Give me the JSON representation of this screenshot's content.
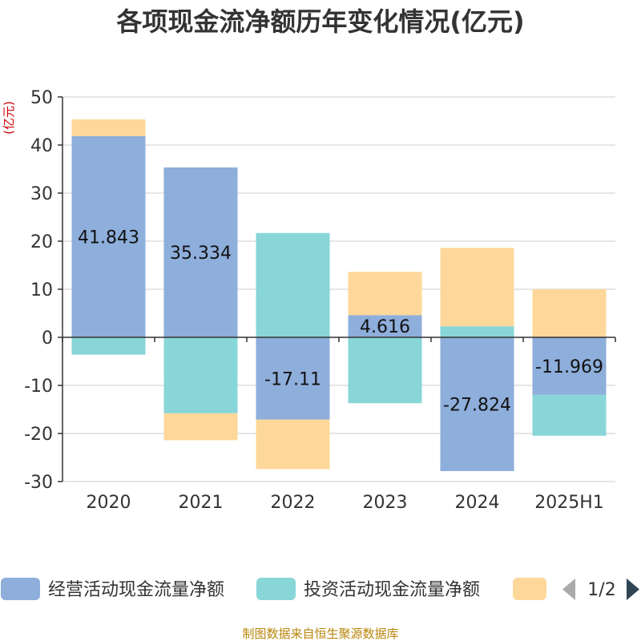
{
  "chart_data": {
    "type": "bar",
    "stacked": true,
    "title": "各项现金流净额历年变化情况(亿元)",
    "y_unit": "(亿元)",
    "categories": [
      "2020",
      "2021",
      "2022",
      "2023",
      "2024",
      "2025H1"
    ],
    "ylim": [
      -30,
      50
    ],
    "y_ticks": [
      50,
      40,
      30,
      20,
      10,
      0,
      -10,
      -20,
      -30
    ],
    "grid": true,
    "legend_position": "bottom",
    "series": [
      {
        "name": "经营活动现金流量净额",
        "color": "#8eaedb",
        "values": [
          41.843,
          35.334,
          -17.11,
          4.616,
          -27.824,
          -11.969
        ],
        "labels": [
          "41.843",
          "35.334",
          "-17.11",
          "4.616",
          "-27.824",
          "-11.969"
        ]
      },
      {
        "name": "投资活动现金流量净额",
        "color": "#88d6d8",
        "values": [
          -3.6,
          -15.8,
          21.7,
          -13.7,
          2.3,
          -8.5
        ]
      },
      {
        "name": "",
        "color": "#fdd89a",
        "values": [
          3.5,
          -5.6,
          -10.3,
          9.0,
          16.3,
          10.0
        ]
      }
    ]
  },
  "legend": {
    "page": "1/2"
  },
  "source": "制图数据来自恒生聚源数据库",
  "icons": {
    "prev": "triangle-left-icon",
    "next": "triangle-right-icon"
  }
}
